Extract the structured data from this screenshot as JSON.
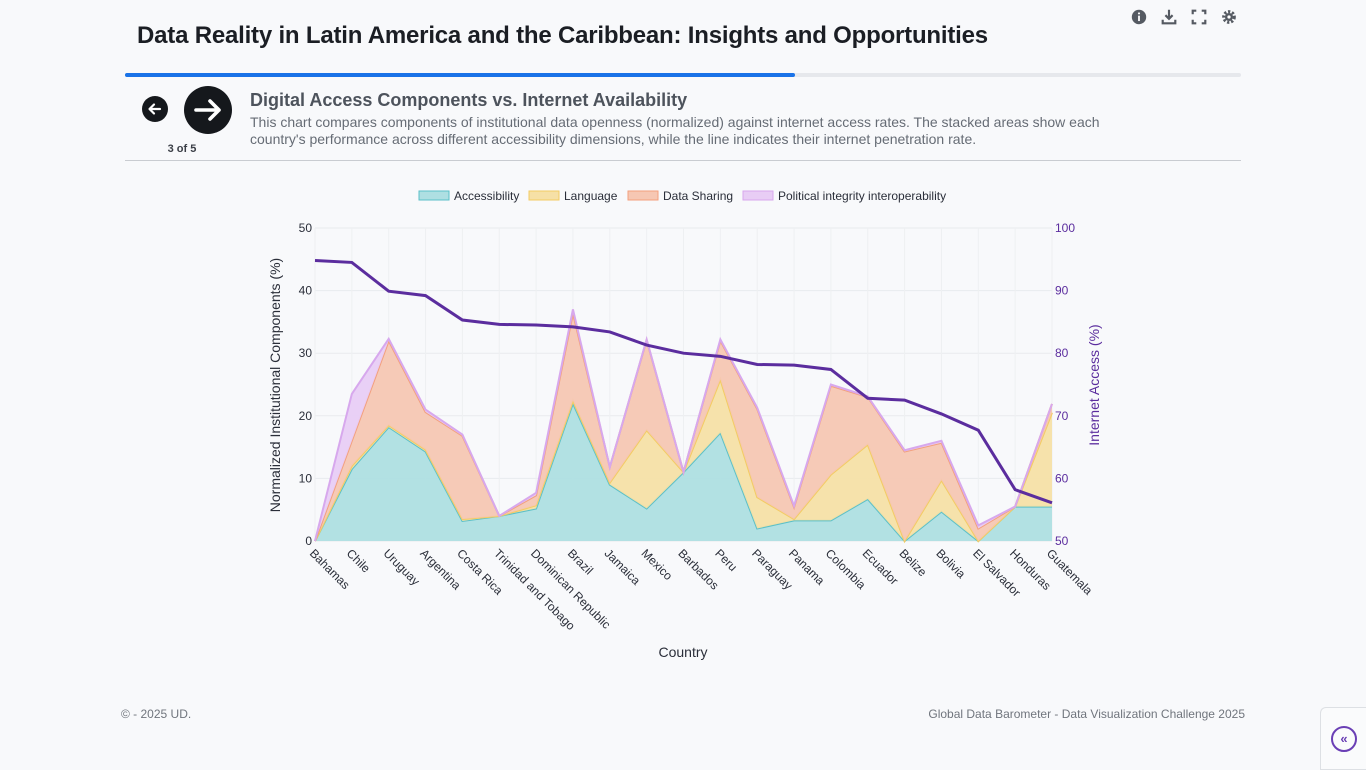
{
  "header": {
    "title": "Data Reality in Latin America and the Caribbean: Insights and Opportunities",
    "progress_fraction": 0.6
  },
  "toolbar": {
    "icons": [
      "info-icon",
      "download-icon",
      "fullscreen-icon",
      "settings-icon"
    ]
  },
  "nav": {
    "step_label": "3 of 5"
  },
  "chart_section": {
    "heading": "Digital Access Components vs. Internet Availability",
    "description": "This chart compares components of institutional data openness (normalized) against internet access rates. The stacked areas show each country's performance across different accessibility dimensions, while the line indicates their internet penetration rate."
  },
  "footer": {
    "left": "© - 2025 UD.",
    "right": "Global Data Barometer - Data Visualization Challenge 2025"
  },
  "chart_data": {
    "type": "area",
    "x": [
      "Bahamas",
      "Chile",
      "Uruguay",
      "Argentina",
      "Costa Rica",
      "Trinidad and Tobago",
      "Dominican Republic",
      "Brazil",
      "Jamaica",
      "Mexico",
      "Barbados",
      "Peru",
      "Paraguay",
      "Panama",
      "Colombia",
      "Ecuador",
      "Belize",
      "Bolivia",
      "El Salvador",
      "Honduras",
      "Guatemala"
    ],
    "xlabel": "Country",
    "ylabel": "Normalized Institutional Components (%)",
    "y2label": "Internet Access (%)",
    "ylim": [
      0,
      50
    ],
    "y2lim": [
      50,
      100
    ],
    "yticks": [
      0,
      10,
      20,
      30,
      40,
      50
    ],
    "y2ticks": [
      50,
      60,
      70,
      80,
      90,
      100
    ],
    "legend_position": "top-center",
    "stacked": true,
    "series": [
      {
        "name": "Accessibility",
        "color": "#5bc0c8",
        "fill": "#aedfe2",
        "values": [
          0,
          11.5,
          18.2,
          14.3,
          3.2,
          4.0,
          5.2,
          22.0,
          9.0,
          5.2,
          11.0,
          17.3,
          2.0,
          3.3,
          3.3,
          6.7,
          0,
          4.7,
          0,
          5.5,
          5.5
        ]
      },
      {
        "name": "Language",
        "color": "#f3cc63",
        "fill": "#f6e0a6",
        "values": [
          0,
          0.5,
          0.3,
          0.3,
          0.3,
          0,
          0.5,
          0.4,
          0.3,
          12.5,
          0,
          8.5,
          5.0,
          0.2,
          7.3,
          8.7,
          0,
          5.0,
          0,
          0,
          15.0
        ]
      },
      {
        "name": "Data Sharing",
        "color": "#f3a07e",
        "fill": "#f6c7b3",
        "values": [
          0,
          4.0,
          13.5,
          6.0,
          13.3,
          0,
          1.6,
          14.0,
          2.5,
          14.4,
          0,
          6.2,
          14.1,
          1.9,
          14.2,
          7.6,
          14.3,
          6.0,
          2.0,
          0,
          1.4
        ]
      },
      {
        "name": "Political integrity interoperability",
        "color": "#d7a8ed",
        "fill": "#e8cdf5",
        "values": [
          0,
          7.5,
          0.3,
          0.4,
          0.2,
          0,
          0.4,
          0.6,
          0,
          0.1,
          0,
          0.2,
          0.2,
          0.2,
          0.2,
          0.1,
          0.2,
          0.3,
          0.5,
          0,
          0
        ]
      },
      {
        "name": "Internet Access",
        "color": "#5b2d9e",
        "type": "line",
        "axis": "y2",
        "values": [
          94.8,
          94.5,
          89.9,
          89.2,
          85.3,
          84.6,
          84.5,
          84.2,
          83.4,
          81.3,
          80.0,
          79.5,
          78.2,
          78.1,
          77.4,
          72.8,
          72.5,
          70.3,
          67.7,
          58.2,
          56.1
        ]
      }
    ]
  }
}
